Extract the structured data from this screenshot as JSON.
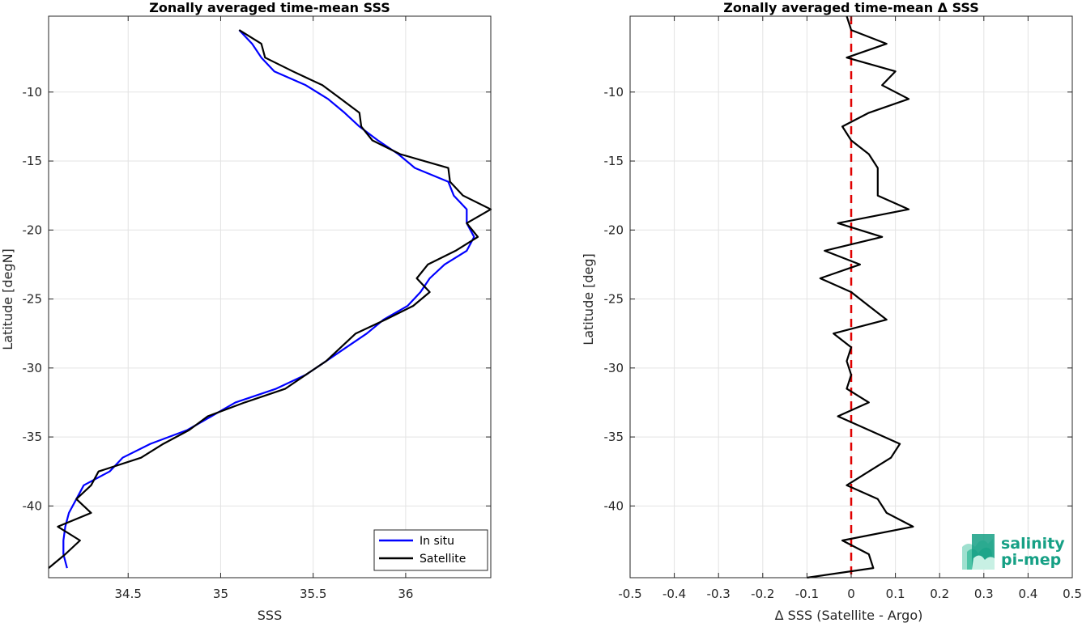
{
  "chart_data": [
    {
      "type": "line",
      "title": "Zonally averaged time-mean SSS",
      "xlabel": "SSS",
      "ylabel": "Latitude [degN]",
      "xlim": [
        34.07,
        36.46
      ],
      "ylim": [
        -45.2,
        -4.5
      ],
      "xticks": [
        34.5,
        35,
        35.5,
        36
      ],
      "xtick_labels": [
        "34.5",
        "35",
        "35.5",
        "36"
      ],
      "yticks": [
        -10,
        -15,
        -20,
        -25,
        -30,
        -35,
        -40
      ],
      "ytick_labels": [
        "-10",
        "-15",
        "-20",
        "-25",
        "-30",
        "-35",
        "-40"
      ],
      "grid": true,
      "legend_position": "bottom-right",
      "series": [
        {
          "name": "In situ",
          "color": "#0000ff",
          "points": [
            [
              35.1,
              -5.5
            ],
            [
              35.17,
              -6.5
            ],
            [
              35.22,
              -7.5
            ],
            [
              35.29,
              -8.5
            ],
            [
              35.46,
              -9.5
            ],
            [
              35.58,
              -10.5
            ],
            [
              35.67,
              -11.5
            ],
            [
              35.75,
              -12.5
            ],
            [
              35.85,
              -13.5
            ],
            [
              35.96,
              -14.5
            ],
            [
              36.05,
              -15.5
            ],
            [
              36.23,
              -16.5
            ],
            [
              36.26,
              -17.5
            ],
            [
              36.33,
              -18.5
            ],
            [
              36.33,
              -19.5
            ],
            [
              36.37,
              -20.5
            ],
            [
              36.33,
              -21.5
            ],
            [
              36.21,
              -22.5
            ],
            [
              36.13,
              -23.5
            ],
            [
              36.08,
              -24.5
            ],
            [
              36.01,
              -25.5
            ],
            [
              35.88,
              -26.5
            ],
            [
              35.79,
              -27.5
            ],
            [
              35.68,
              -28.5
            ],
            [
              35.57,
              -29.5
            ],
            [
              35.46,
              -30.5
            ],
            [
              35.3,
              -31.5
            ],
            [
              35.08,
              -32.5
            ],
            [
              34.95,
              -33.5
            ],
            [
              34.82,
              -34.5
            ],
            [
              34.62,
              -35.5
            ],
            [
              34.47,
              -36.5
            ],
            [
              34.4,
              -37.5
            ],
            [
              34.26,
              -38.5
            ],
            [
              34.22,
              -39.5
            ],
            [
              34.18,
              -40.5
            ],
            [
              34.16,
              -41.5
            ],
            [
              34.15,
              -42.5
            ],
            [
              34.15,
              -43.5
            ],
            [
              34.17,
              -44.5
            ]
          ]
        },
        {
          "name": "Satellite",
          "color": "#000000",
          "points": [
            [
              35.1,
              -5.5
            ],
            [
              35.22,
              -6.5
            ],
            [
              35.24,
              -7.5
            ],
            [
              35.39,
              -8.5
            ],
            [
              35.55,
              -9.5
            ],
            [
              35.65,
              -10.5
            ],
            [
              35.75,
              -11.5
            ],
            [
              35.76,
              -12.5
            ],
            [
              35.82,
              -13.5
            ],
            [
              35.97,
              -14.5
            ],
            [
              36.23,
              -15.5
            ],
            [
              36.24,
              -16.5
            ],
            [
              36.31,
              -17.5
            ],
            [
              36.46,
              -18.5
            ],
            [
              36.33,
              -19.5
            ],
            [
              36.39,
              -20.5
            ],
            [
              36.27,
              -21.5
            ],
            [
              36.12,
              -22.5
            ],
            [
              36.06,
              -23.5
            ],
            [
              36.13,
              -24.5
            ],
            [
              36.04,
              -25.5
            ],
            [
              35.89,
              -26.5
            ],
            [
              35.73,
              -27.5
            ],
            [
              35.65,
              -28.5
            ],
            [
              35.57,
              -29.5
            ],
            [
              35.46,
              -30.5
            ],
            [
              35.35,
              -31.5
            ],
            [
              35.13,
              -32.5
            ],
            [
              34.93,
              -33.5
            ],
            [
              34.83,
              -34.5
            ],
            [
              34.69,
              -35.5
            ],
            [
              34.57,
              -36.5
            ],
            [
              34.34,
              -37.5
            ],
            [
              34.3,
              -38.5
            ],
            [
              34.22,
              -39.5
            ],
            [
              34.3,
              -40.5
            ],
            [
              34.12,
              -41.5
            ],
            [
              34.24,
              -42.5
            ],
            [
              34.16,
              -43.5
            ],
            [
              34.07,
              -44.5
            ]
          ]
        }
      ]
    },
    {
      "type": "line",
      "title": "Zonally averaged time-mean Δ SSS",
      "xlabel": "Δ SSS (Satellite - Argo)",
      "ylabel": "Latitude [deg]",
      "xlim": [
        -0.5,
        0.5
      ],
      "ylim": [
        -45.2,
        -4.5
      ],
      "xticks": [
        -0.5,
        -0.4,
        -0.3,
        -0.2,
        -0.1,
        0,
        0.1,
        0.2,
        0.3,
        0.4,
        0.5
      ],
      "xtick_labels": [
        "-0.5",
        "-0.4",
        "-0.3",
        "-0.2",
        "-0.1",
        "0",
        "0.1",
        "0.2",
        "0.3",
        "0.4",
        "0.5"
      ],
      "yticks": [
        -10,
        -15,
        -20,
        -25,
        -30,
        -35,
        -40
      ],
      "ytick_labels": [
        "-10",
        "-15",
        "-20",
        "-25",
        "-30",
        "-35",
        "-40"
      ],
      "grid": true,
      "reference_line": {
        "x": 0,
        "color": "#e00000",
        "style": "dashed"
      },
      "series": [
        {
          "color": "#000000",
          "points": [
            [
              -0.01,
              -4.5
            ],
            [
              0.0,
              -5.5
            ],
            [
              0.08,
              -6.5
            ],
            [
              -0.01,
              -7.5
            ],
            [
              0.1,
              -8.5
            ],
            [
              0.07,
              -9.5
            ],
            [
              0.13,
              -10.5
            ],
            [
              0.04,
              -11.5
            ],
            [
              -0.02,
              -12.5
            ],
            [
              0.0,
              -13.5
            ],
            [
              0.04,
              -14.5
            ],
            [
              0.06,
              -15.5
            ],
            [
              0.06,
              -16.5
            ],
            [
              0.06,
              -17.5
            ],
            [
              0.13,
              -18.5
            ],
            [
              -0.03,
              -19.5
            ],
            [
              0.07,
              -20.5
            ],
            [
              -0.06,
              -21.5
            ],
            [
              0.02,
              -22.5
            ],
            [
              -0.07,
              -23.5
            ],
            [
              0.0,
              -24.5
            ],
            [
              0.04,
              -25.5
            ],
            [
              0.08,
              -26.5
            ],
            [
              -0.04,
              -27.5
            ],
            [
              0.0,
              -28.5
            ],
            [
              -0.01,
              -29.5
            ],
            [
              0.0,
              -30.5
            ],
            [
              -0.01,
              -31.5
            ],
            [
              0.04,
              -32.5
            ],
            [
              -0.03,
              -33.5
            ],
            [
              0.04,
              -34.5
            ],
            [
              0.11,
              -35.5
            ],
            [
              0.09,
              -36.5
            ],
            [
              0.04,
              -37.5
            ],
            [
              -0.01,
              -38.5
            ],
            [
              0.06,
              -39.5
            ],
            [
              0.08,
              -40.5
            ],
            [
              0.14,
              -41.5
            ],
            [
              -0.02,
              -42.5
            ],
            [
              0.04,
              -43.5
            ],
            [
              0.05,
              -44.5
            ],
            [
              -0.1,
              -45.2
            ]
          ]
        }
      ]
    }
  ],
  "logo": {
    "line1": "salinity",
    "line2": "pi-mep",
    "color": "#16a085"
  }
}
